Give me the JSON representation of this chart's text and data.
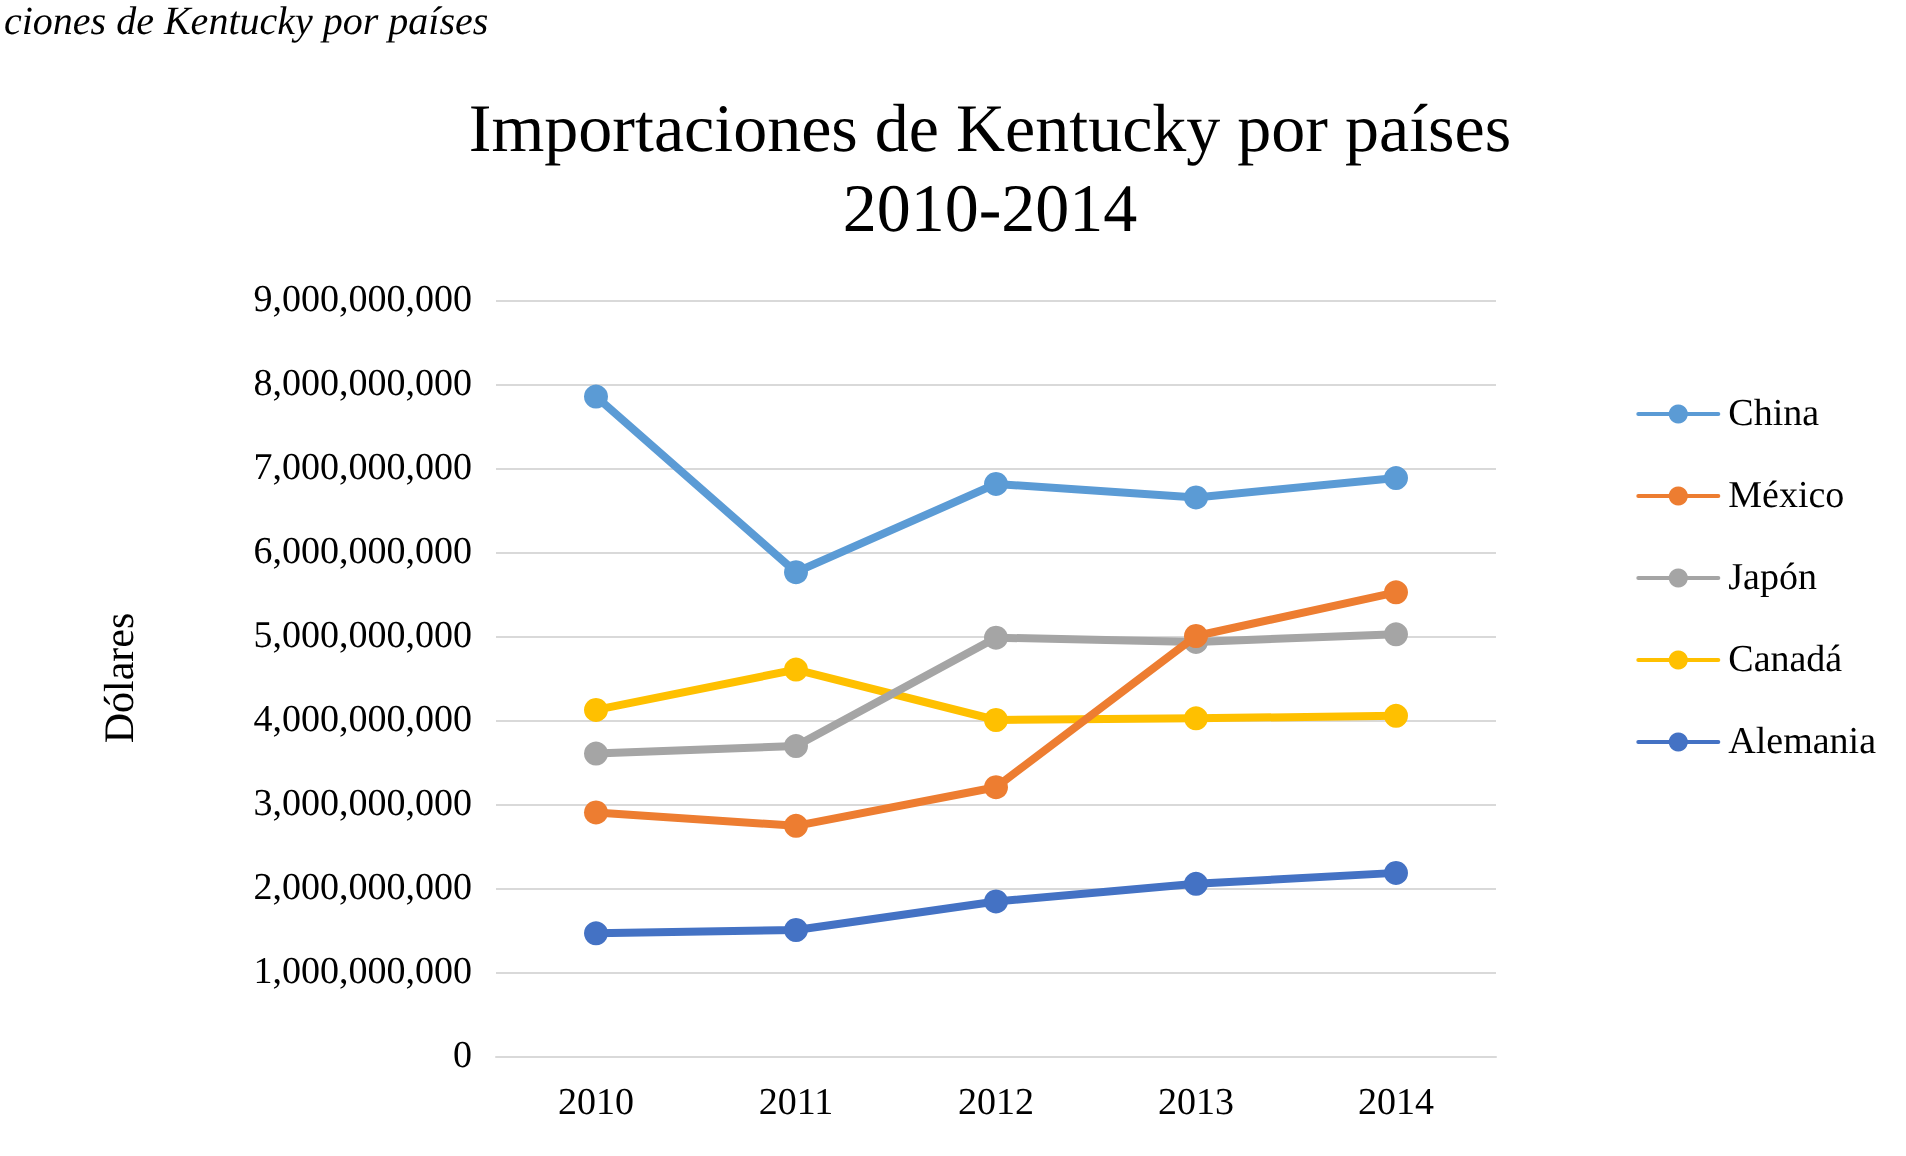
{
  "chart_data": {
    "type": "line",
    "title": "Importaciones de Kentucky por países\n2010-2014",
    "ylabel": "Dólares",
    "annotations": [
      "ciones de Kentucky por países"
    ],
    "categories": [
      "2010",
      "2011",
      "2012",
      "2013",
      "2014"
    ],
    "series": [
      {
        "name": "China",
        "color": "#5b9bd5",
        "values": [
          7850000000,
          5760000000,
          6810000000,
          6650000000,
          6880000000
        ]
      },
      {
        "name": "México",
        "color": "#ed7d31",
        "values": [
          2900000000,
          2740000000,
          3200000000,
          5000000000,
          5520000000
        ]
      },
      {
        "name": "Japón",
        "color": "#a5a5a5",
        "values": [
          3600000000,
          3690000000,
          4980000000,
          4930000000,
          5020000000
        ]
      },
      {
        "name": "Canadá",
        "color": "#ffc000",
        "values": [
          4120000000,
          4600000000,
          4000000000,
          4020000000,
          4050000000
        ]
      },
      {
        "name": "Alemania",
        "color": "#4472c4",
        "values": [
          1460000000,
          1500000000,
          1840000000,
          2050000000,
          2180000000
        ]
      }
    ],
    "ylim": [
      0,
      9000000000
    ],
    "yticks": [
      0,
      {
        "value": 1000000000,
        "label": "1,000,000,000"
      },
      {
        "value": 2000000000,
        "label": "2,000,000,000"
      },
      {
        "value": 3000000000,
        "label": "3,000,000,000"
      },
      {
        "value": 4000000000,
        "label": "4,000,000,000"
      },
      {
        "value": 5000000000,
        "label": "5,000,000,000"
      },
      {
        "value": 6000000000,
        "label": "6,000,000,000"
      },
      {
        "value": 7000000000,
        "label": "7,000,000,000"
      },
      {
        "value": 8000000000,
        "label": "8,000,000,000"
      },
      {
        "value": 9000000000,
        "label": "9,000,000,000"
      }
    ],
    "grid": "y",
    "legend": "right",
    "marker": "circle",
    "line_style": "solid"
  }
}
